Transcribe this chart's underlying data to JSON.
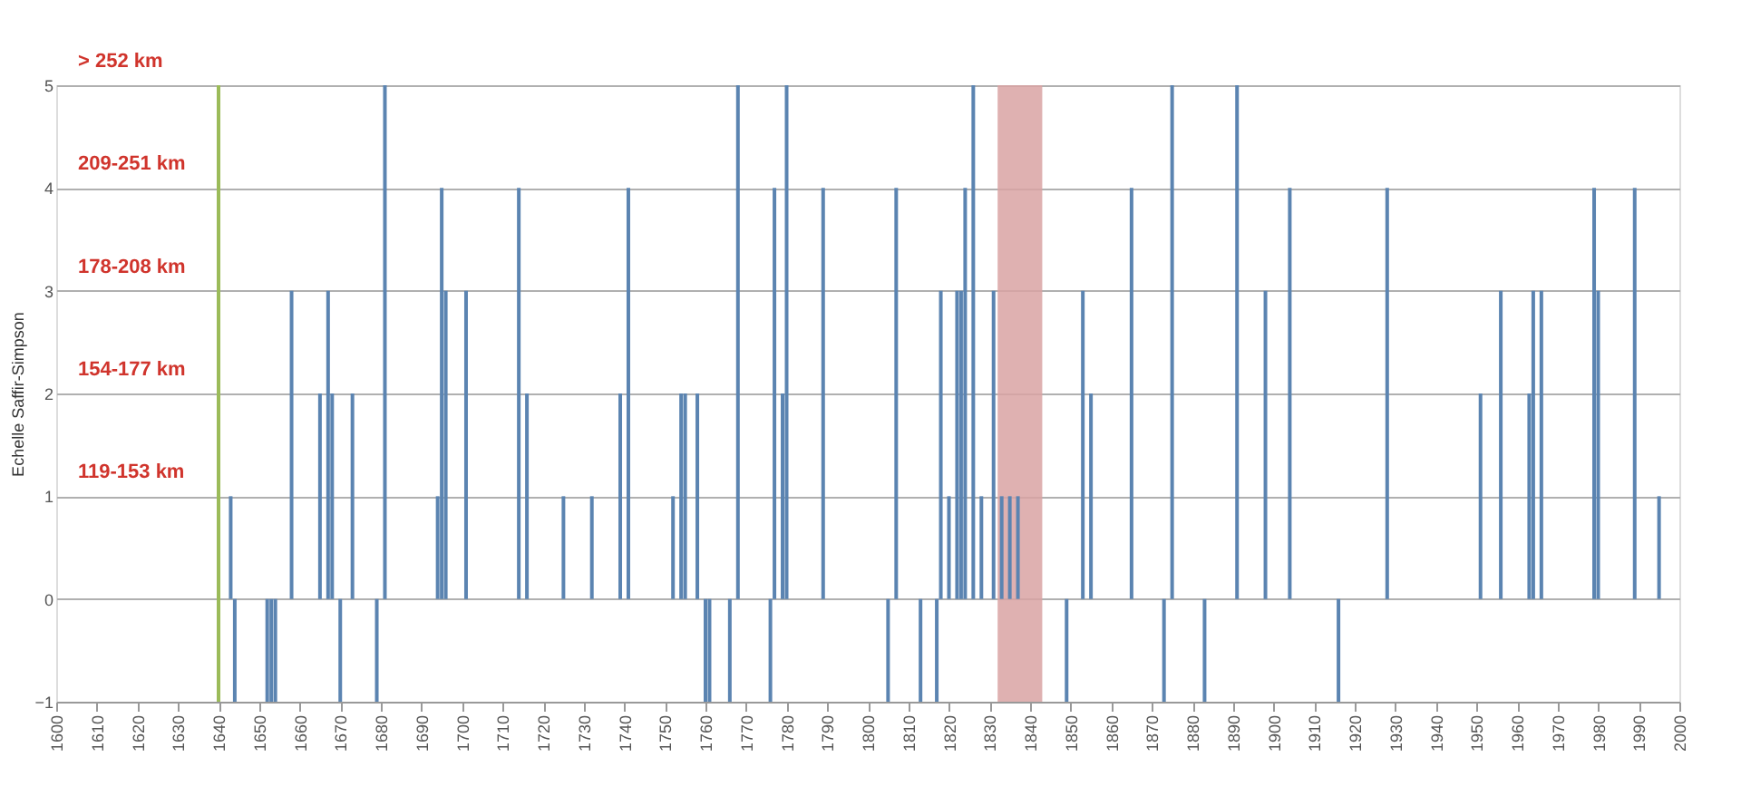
{
  "chart_data": {
    "type": "bar",
    "ylabel": "Echelle Saffir-Simpson",
    "x": [
      1643,
      1644,
      1652,
      1653,
      1654,
      1658,
      1665,
      1667,
      1668,
      1670,
      1673,
      1679,
      1681,
      1694,
      1695,
      1696,
      1701,
      1714,
      1716,
      1725,
      1732,
      1739,
      1741,
      1752,
      1754,
      1755,
      1758,
      1760,
      1761,
      1766,
      1768,
      1776,
      1777,
      1779,
      1780,
      1789,
      1805,
      1807,
      1813,
      1817,
      1818,
      1820,
      1822,
      1823,
      1824,
      1826,
      1828,
      1831,
      1833,
      1835,
      1837,
      1849,
      1853,
      1855,
      1865,
      1873,
      1875,
      1883,
      1891,
      1898,
      1904,
      1916,
      1928,
      1951,
      1956,
      1963,
      1964,
      1966,
      1979,
      1980,
      1989,
      1995
    ],
    "values": [
      1,
      -1,
      -1,
      -1,
      -1,
      3,
      2,
      3,
      2,
      -1,
      2,
      -1,
      5,
      1,
      4,
      3,
      3,
      4,
      2,
      1,
      1,
      2,
      4,
      1,
      2,
      2,
      2,
      -1,
      -1,
      -1,
      5,
      -1,
      4,
      2,
      5,
      4,
      -1,
      4,
      -1,
      -1,
      3,
      1,
      3,
      3,
      4,
      5,
      1,
      3,
      1,
      1,
      1,
      -1,
      3,
      2,
      4,
      -1,
      5,
      -1,
      5,
      3,
      4,
      -1,
      4,
      2,
      3,
      2,
      3,
      3,
      4,
      3,
      4,
      1
    ],
    "color": "#5b84b1",
    "xlim": [
      1600,
      2000
    ],
    "xticks": [
      1600,
      1610,
      1620,
      1630,
      1640,
      1650,
      1660,
      1670,
      1680,
      1690,
      1700,
      1710,
      1720,
      1730,
      1740,
      1750,
      1760,
      1770,
      1780,
      1790,
      1800,
      1810,
      1820,
      1830,
      1840,
      1850,
      1860,
      1870,
      1880,
      1890,
      1900,
      1910,
      1920,
      1930,
      1940,
      1950,
      1960,
      1970,
      1980,
      1990,
      2000
    ],
    "ylim": [
      -1,
      5
    ],
    "yticks": [
      -1,
      0,
      1,
      2,
      3,
      4,
      5
    ],
    "grid": "y",
    "ref_lines": [
      {
        "axis": "x",
        "value": 1640,
        "color": "#9bbb59"
      }
    ],
    "bands": [
      {
        "axis": "x",
        "from": 1832,
        "to": 1843,
        "color": "#d9a3a3"
      }
    ],
    "annotations": [
      "119-153 km",
      "154-177 km",
      "178-208 km",
      "209-251 km",
      "> 252 km"
    ]
  }
}
